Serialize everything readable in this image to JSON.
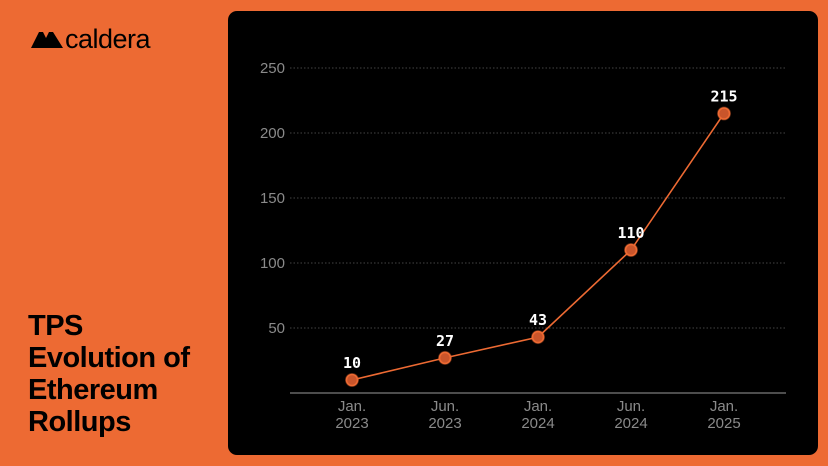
{
  "brand": {
    "name": "caldera"
  },
  "title_lines": [
    "TPS",
    "Evolution of",
    "Ethereum",
    "Rollups"
  ],
  "colors": {
    "background": "#ED6A33",
    "panel": "#000000",
    "accent": "#ED6A33",
    "marker_fill": "#C9552B"
  },
  "chart_data": {
    "type": "line",
    "title": "TPS Evolution of Ethereum Rollups",
    "categories": [
      [
        "Jan.",
        "2023"
      ],
      [
        "Jun.",
        "2023"
      ],
      [
        "Jan.",
        "2024"
      ],
      [
        "Jun.",
        "2024"
      ],
      [
        "Jan.",
        "2025"
      ]
    ],
    "series": [
      {
        "values": [
          10,
          27,
          43,
          110,
          215
        ]
      }
    ],
    "data_labels": [
      "10",
      "27",
      "43",
      "110",
      "215"
    ],
    "y_ticks": [
      50,
      100,
      150,
      200,
      250
    ],
    "ylim": [
      0,
      250
    ],
    "grid": true,
    "legend": "none"
  }
}
